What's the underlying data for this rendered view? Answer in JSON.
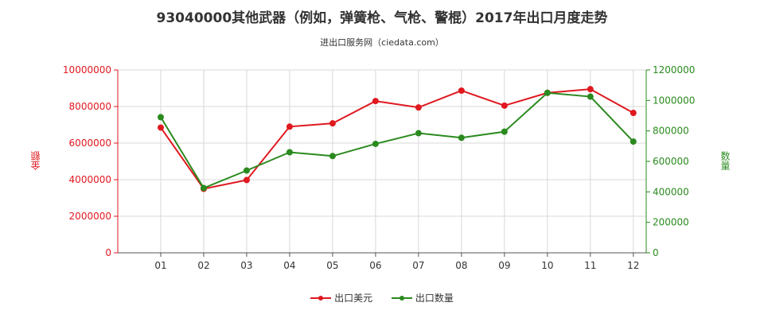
{
  "chart_data": {
    "type": "line",
    "title": "93040000其他武器（例如，弹簧枪、气枪、警棍）2017年出口月度走势",
    "subtitle": "进出口服务网（ciedata.com）",
    "categories": [
      "01",
      "02",
      "03",
      "04",
      "05",
      "06",
      "07",
      "08",
      "09",
      "10",
      "11",
      "12"
    ],
    "y_left_label": "金额",
    "y_right_label": "数量",
    "y_left_lim": [
      0,
      10000000
    ],
    "y_right_lim": [
      0,
      1200000
    ],
    "y_left_ticks": [
      "0",
      "2000000",
      "4000000",
      "6000000",
      "8000000",
      "10000000"
    ],
    "y_right_ticks": [
      "0",
      "200000",
      "400000",
      "600000",
      "800000",
      "1000000",
      "1200000"
    ],
    "series": [
      {
        "name": "出口美元",
        "axis": "left",
        "color": "#e0181f",
        "values": [
          6850000,
          3500000,
          3980000,
          6900000,
          7080000,
          8300000,
          7950000,
          8870000,
          8050000,
          8750000,
          8950000,
          7650000
        ]
      },
      {
        "name": "出口数量",
        "axis": "right",
        "color": "#2a8a1e",
        "values": [
          890000,
          425000,
          540000,
          660000,
          635000,
          715000,
          785000,
          755000,
          795000,
          1050000,
          1025000,
          730000
        ]
      }
    ],
    "grid": true,
    "legend_position": "bottom"
  }
}
